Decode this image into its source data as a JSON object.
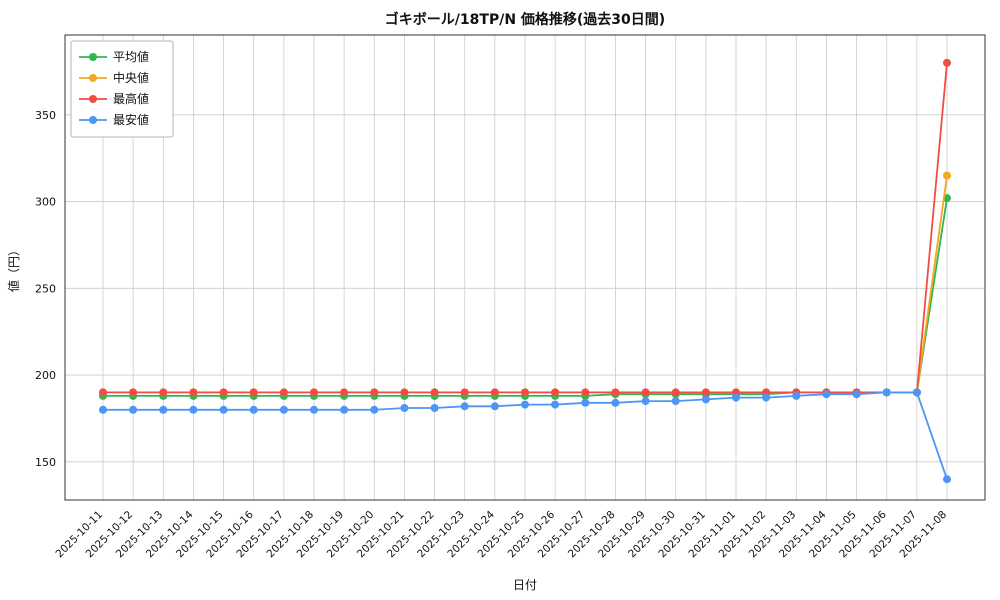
{
  "chart_data": {
    "type": "line",
    "title": "ゴキボール/18TP/N 価格推移(過去30日間)",
    "xlabel": "日付",
    "ylabel": "値（円）",
    "ylim": [
      128,
      396
    ],
    "yticks": [
      150,
      200,
      250,
      300,
      350
    ],
    "grid": true,
    "legend_position": "upper left",
    "x": [
      "2025-10-11",
      "2025-10-12",
      "2025-10-13",
      "2025-10-14",
      "2025-10-15",
      "2025-10-16",
      "2025-10-17",
      "2025-10-18",
      "2025-10-19",
      "2025-10-20",
      "2025-10-21",
      "2025-10-22",
      "2025-10-23",
      "2025-10-24",
      "2025-10-25",
      "2025-10-26",
      "2025-10-27",
      "2025-10-28",
      "2025-10-29",
      "2025-10-30",
      "2025-10-31",
      "2025-11-01",
      "2025-11-02",
      "2025-11-03",
      "2025-11-04",
      "2025-11-05",
      "2025-11-06",
      "2025-11-07",
      "2025-11-08"
    ],
    "series": [
      {
        "name": "平均値",
        "color": "#2eb84d",
        "values": [
          188,
          188,
          188,
          188,
          188,
          188,
          188,
          188,
          188,
          188,
          188,
          188,
          188,
          188,
          188,
          188,
          188,
          189,
          189,
          189,
          189,
          189,
          189,
          190,
          190,
          190,
          190,
          190,
          302
        ]
      },
      {
        "name": "中央値",
        "color": "#f5a623",
        "values": [
          190,
          190,
          190,
          190,
          190,
          190,
          190,
          190,
          190,
          190,
          190,
          190,
          190,
          190,
          190,
          190,
          190,
          190,
          190,
          190,
          190,
          190,
          190,
          190,
          190,
          190,
          190,
          190,
          315
        ]
      },
      {
        "name": "最高値",
        "color": "#f04e45",
        "values": [
          190,
          190,
          190,
          190,
          190,
          190,
          190,
          190,
          190,
          190,
          190,
          190,
          190,
          190,
          190,
          190,
          190,
          190,
          190,
          190,
          190,
          190,
          190,
          190,
          190,
          190,
          190,
          190,
          380
        ]
      },
      {
        "name": "最安値",
        "color": "#4d96f5",
        "values": [
          180,
          180,
          180,
          180,
          180,
          180,
          180,
          180,
          180,
          180,
          181,
          181,
          182,
          182,
          183,
          183,
          184,
          184,
          185,
          185,
          186,
          187,
          187,
          188,
          189,
          189,
          190,
          190,
          140
        ]
      }
    ],
    "colors": {
      "grid": "#cccccc",
      "axis_border": "#333333",
      "legend_border": "#b3b3b3",
      "background": "#ffffff"
    }
  }
}
